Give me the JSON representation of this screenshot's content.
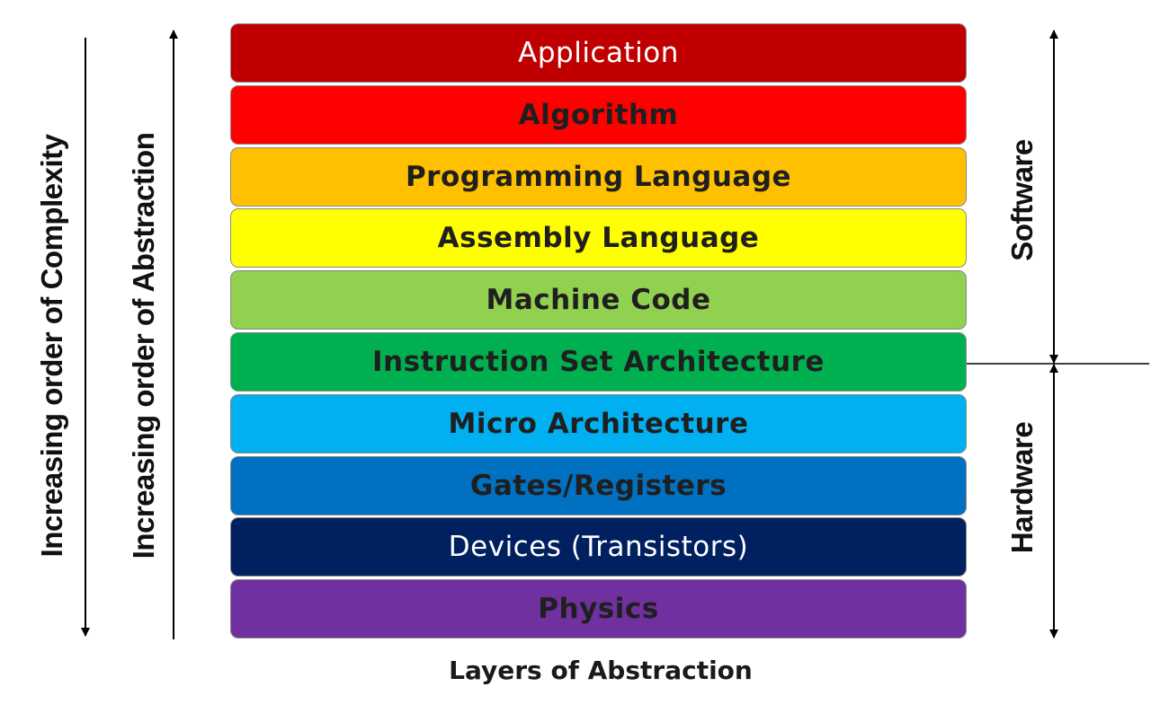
{
  "layers": [
    {
      "label": "Application",
      "color": "#c00000",
      "text_color": "#ffffff"
    },
    {
      "label": "Algorithm",
      "color": "#ff0000",
      "text_color": "#1f1f1f"
    },
    {
      "label": "Programming Language",
      "color": "#ffc000",
      "text_color": "#1f1f1f"
    },
    {
      "label": "Assembly Language",
      "color": "#ffff00",
      "text_color": "#1f1f1f"
    },
    {
      "label": "Machine Code",
      "color": "#92d050",
      "text_color": "#1f1f1f"
    },
    {
      "label": "Instruction Set Architecture",
      "color": "#00b050",
      "text_color": "#1f1f1f"
    },
    {
      "label": "Micro Architecture",
      "color": "#00b0f0",
      "text_color": "#1f1f1f"
    },
    {
      "label": "Gates/Registers",
      "color": "#0070c0",
      "text_color": "#1f1f1f"
    },
    {
      "label": "Devices (Transistors)",
      "color": "#002060",
      "text_color": "#ffffff"
    },
    {
      "label": "Physics",
      "color": "#7030a0",
      "text_color": "#1f1f1f"
    }
  ],
  "left_labels": {
    "complexity": "Increasing order of Complexity",
    "abstraction": "Increasing order of Abstraction"
  },
  "right_labels": {
    "software": "Software",
    "hardware": "Hardware"
  },
  "caption": "Layers of Abstraction"
}
